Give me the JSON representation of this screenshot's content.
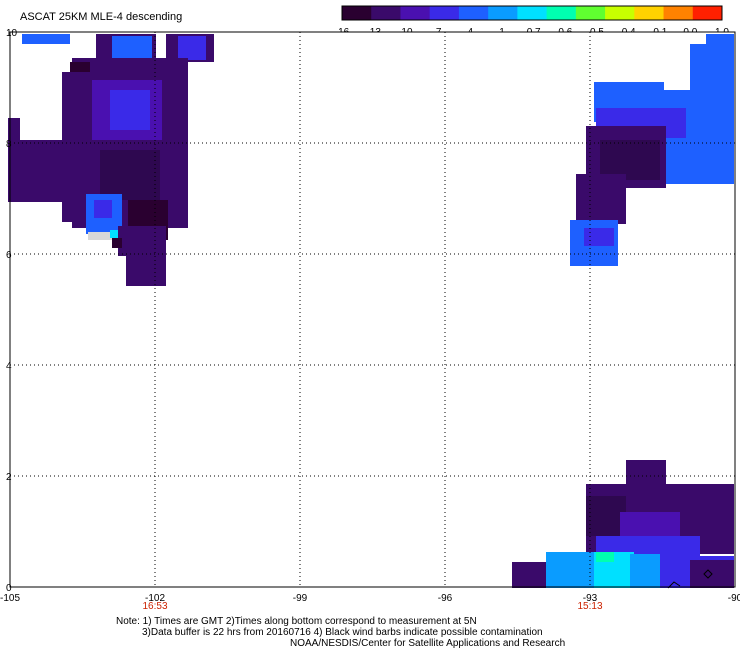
{
  "title": "ASCAT 25KM MLE-4 descending",
  "colorbar": {
    "labels": [
      "-16",
      "-13",
      "-10",
      "-7",
      "-4",
      "-1",
      "-0.7",
      "-0.6",
      "-0.5",
      "-0.4",
      "-0.1",
      "0.0",
      "1.0"
    ],
    "colors": [
      "#2a0030",
      "#3a0a6a",
      "#4a10b0",
      "#3a2ae8",
      "#1e60ff",
      "#0a9cff",
      "#00e0ff",
      "#00ffb0",
      "#60ff30",
      "#c8ff00",
      "#ffd200",
      "#ff8200",
      "#ff2000"
    ]
  },
  "map": {
    "x_ticks": [
      "-105",
      "-102",
      "-99",
      "-96",
      "-93",
      "-90"
    ],
    "y_ticks": [
      "0",
      "2",
      "4",
      "6",
      "8",
      "10"
    ],
    "time_labels": [
      {
        "text": "16:53",
        "lon": -102
      },
      {
        "text": "15:13",
        "lon": -93
      }
    ],
    "lon_range": [
      -105,
      -90
    ],
    "lat_range": [
      0,
      10
    ]
  },
  "note": {
    "line1": "Note: 1) Times are GMT 2)Times along bottom correspond to measurement at 5N",
    "line2": "3)Data buffer is 22 hrs from 20160716 4) Black wind barbs indicate possible contamination",
    "line3": "NOAA/NESDIS/Center for Satellite Applications and Research"
  }
}
